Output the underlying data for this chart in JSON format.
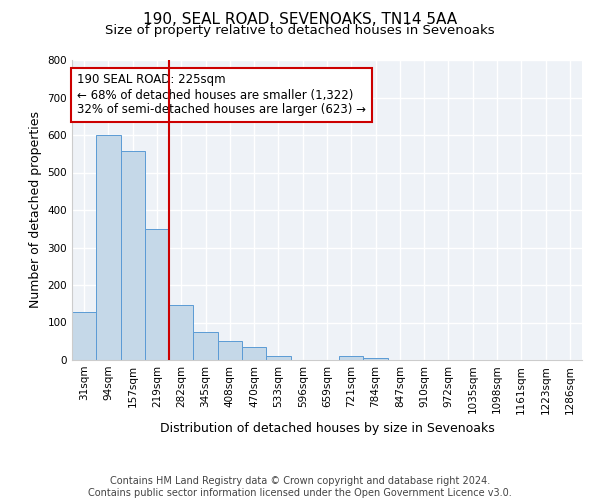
{
  "title": "190, SEAL ROAD, SEVENOAKS, TN14 5AA",
  "subtitle": "Size of property relative to detached houses in Sevenoaks",
  "xlabel": "Distribution of detached houses by size in Sevenoaks",
  "ylabel": "Number of detached properties",
  "bar_labels": [
    "31sqm",
    "94sqm",
    "157sqm",
    "219sqm",
    "282sqm",
    "345sqm",
    "408sqm",
    "470sqm",
    "533sqm",
    "596sqm",
    "659sqm",
    "721sqm",
    "784sqm",
    "847sqm",
    "910sqm",
    "972sqm",
    "1035sqm",
    "1098sqm",
    "1161sqm",
    "1223sqm",
    "1286sqm"
  ],
  "bar_heights": [
    128,
    600,
    557,
    350,
    148,
    75,
    50,
    34,
    12,
    0,
    0,
    10,
    5,
    0,
    0,
    0,
    0,
    0,
    0,
    0,
    0
  ],
  "bar_color": "#c5d8e8",
  "bar_edge_color": "#5b9bd5",
  "vline_x": 3,
  "vline_color": "#cc0000",
  "annotation_line1": "190 SEAL ROAD: 225sqm",
  "annotation_line2": "← 68% of detached houses are smaller (1,322)",
  "annotation_line3": "32% of semi-detached houses are larger (623) →",
  "annotation_box_color": "#ffffff",
  "annotation_box_edge": "#cc0000",
  "ylim": [
    0,
    800
  ],
  "yticks": [
    0,
    100,
    200,
    300,
    400,
    500,
    600,
    700,
    800
  ],
  "footer_line1": "Contains HM Land Registry data © Crown copyright and database right 2024.",
  "footer_line2": "Contains public sector information licensed under the Open Government Licence v3.0.",
  "title_fontsize": 11,
  "subtitle_fontsize": 9.5,
  "axis_label_fontsize": 9,
  "tick_fontsize": 7.5,
  "footer_fontsize": 7,
  "annotation_fontsize": 8.5,
  "bg_color": "#eef2f7"
}
